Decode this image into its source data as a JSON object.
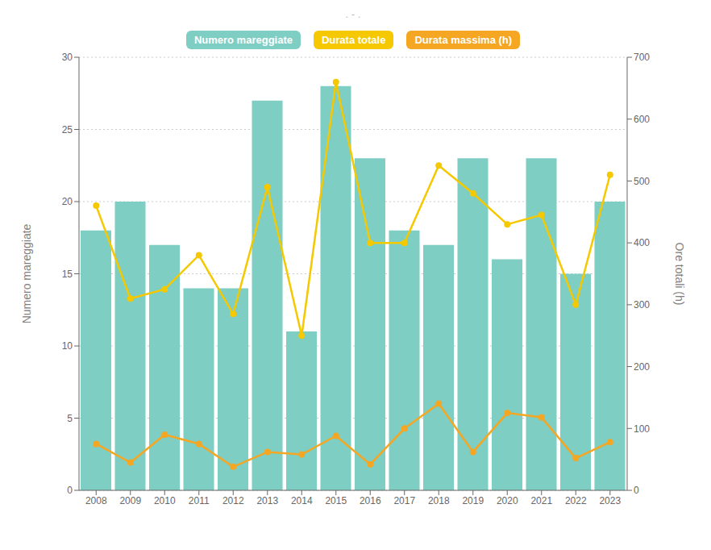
{
  "chart_data": {
    "type": "bar",
    "title": ". - .",
    "categories": [
      "2008",
      "2009",
      "2010",
      "2011",
      "2012",
      "2013",
      "2014",
      "2015",
      "2016",
      "2017",
      "2018",
      "2019",
      "2020",
      "2021",
      "2022",
      "2023"
    ],
    "series": [
      {
        "name": "Numero mareggiate",
        "type": "bar",
        "color": "#7ecec4",
        "values": [
          18,
          20,
          17,
          14,
          14,
          27,
          11,
          28,
          23,
          18,
          17,
          23,
          16,
          23,
          15,
          20
        ]
      },
      {
        "name": "Durata totale",
        "type": "line",
        "axis": "y2",
        "color": "#f5c800",
        "marker": "o",
        "values": [
          460,
          310,
          325,
          380,
          285,
          490,
          250,
          660,
          400,
          400,
          525,
          480,
          430,
          445,
          300,
          510
        ]
      },
      {
        "name": "Durata massima (h)",
        "type": "line",
        "axis": "y2",
        "color": "#f5a623",
        "marker": "o",
        "values": [
          75,
          45,
          90,
          75,
          38,
          62,
          58,
          88,
          42,
          100,
          140,
          62,
          125,
          118,
          52,
          78
        ]
      }
    ],
    "ylabel": "Numero mareggiate",
    "y2label": "Ore totali (h)",
    "ylim": [
      0,
      30
    ],
    "yticks": [
      0,
      5,
      10,
      15,
      20,
      25,
      30
    ],
    "y2lim": [
      0,
      700
    ],
    "y2ticks": [
      0,
      100,
      200,
      300,
      400,
      500,
      600,
      700
    ],
    "grid": true,
    "legend": "top"
  }
}
